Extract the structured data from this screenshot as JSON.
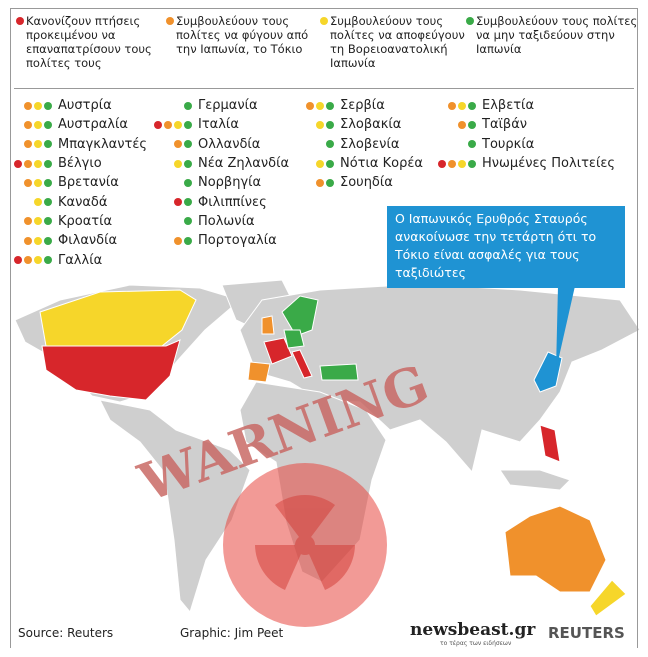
{
  "legend": [
    {
      "color": "#d7262b",
      "text": "Κανονίζουν πτήσεις προκειμένου να επαναπατρίσουν τους πολίτες τους"
    },
    {
      "color": "#f0912c",
      "text": "Συμβουλεύουν τους πολίτες να φύγουν από την Ιαπωνία, το Τόκιο"
    },
    {
      "color": "#f6d62a",
      "text": "Συμβουλεύουν τους πολίτες να αποφεύγουν τη Βορειοανατολική Ιαπωνία"
    },
    {
      "color": "#3aaa48",
      "text": "Συμβουλεύουν τους πολίτες να μην ταξιδεύουν στην Ιαπωνία"
    }
  ],
  "countries": [
    [
      {
        "name": "Αυστρία",
        "advisories": [
          1,
          2,
          3
        ]
      },
      {
        "name": "Αυστραλία",
        "advisories": [
          1,
          2,
          3
        ]
      },
      {
        "name": "Μπαγκλαντές",
        "advisories": [
          1,
          2,
          3
        ]
      },
      {
        "name": "Βέλγιο",
        "advisories": [
          0,
          1,
          2,
          3
        ]
      },
      {
        "name": "Βρετανία",
        "advisories": [
          1,
          2,
          3
        ]
      },
      {
        "name": "Καναδά",
        "advisories": [
          2,
          3
        ]
      },
      {
        "name": "Κροατία",
        "advisories": [
          1,
          2,
          3
        ]
      },
      {
        "name": "Φιλανδία",
        "advisories": [
          1,
          2,
          3
        ]
      },
      {
        "name": "Γαλλία",
        "advisories": [
          0,
          1,
          2,
          3
        ]
      }
    ],
    [
      {
        "name": "Γερμανία",
        "advisories": [
          3
        ]
      },
      {
        "name": "Ιταλία",
        "advisories": [
          0,
          1,
          2,
          3
        ]
      },
      {
        "name": "Ολλανδία",
        "advisories": [
          1,
          3
        ]
      },
      {
        "name": "Νέα Ζηλανδία",
        "advisories": [
          2,
          3
        ]
      },
      {
        "name": "Νορβηγία",
        "advisories": [
          3
        ]
      },
      {
        "name": "Φιλιππίνες",
        "advisories": [
          0,
          3
        ]
      },
      {
        "name": "Πολωνία",
        "advisories": [
          3
        ]
      },
      {
        "name": "Πορτογαλία",
        "advisories": [
          1,
          3
        ]
      }
    ],
    [
      {
        "name": "Σερβία",
        "advisories": [
          1,
          2,
          3
        ]
      },
      {
        "name": "Σλοβακία",
        "advisories": [
          2,
          3
        ]
      },
      {
        "name": "Σλοβενία",
        "advisories": [
          3
        ]
      },
      {
        "name": "Νότια Κορέα",
        "advisories": [
          2,
          3
        ]
      },
      {
        "name": "Σουηδία",
        "advisories": [
          1,
          3
        ]
      }
    ],
    [
      {
        "name": "Ελβετία",
        "advisories": [
          1,
          2,
          3
        ]
      },
      {
        "name": "Ταϊβάν",
        "advisories": [
          1,
          3
        ]
      },
      {
        "name": "Τουρκία",
        "advisories": [
          3
        ]
      },
      {
        "name": "Ηνωμένες Πολιτείες",
        "advisories": [
          0,
          1,
          2,
          3
        ]
      }
    ]
  ],
  "callout": "Ο Ιαπωνικός Ερυθρός Σταυρός ανακοίνωσε την τετάρτη ότι το Τόκιο είναι ασφαλές για τους ταξιδιώτες",
  "watermark": "WARNING",
  "footer": {
    "source": "Source: Reuters",
    "credit": "Graphic: Jim Peet",
    "logo": "newsbeast.gr",
    "tagline": "το τέρας των ειδήσεων",
    "agency": "REUTERS"
  }
}
